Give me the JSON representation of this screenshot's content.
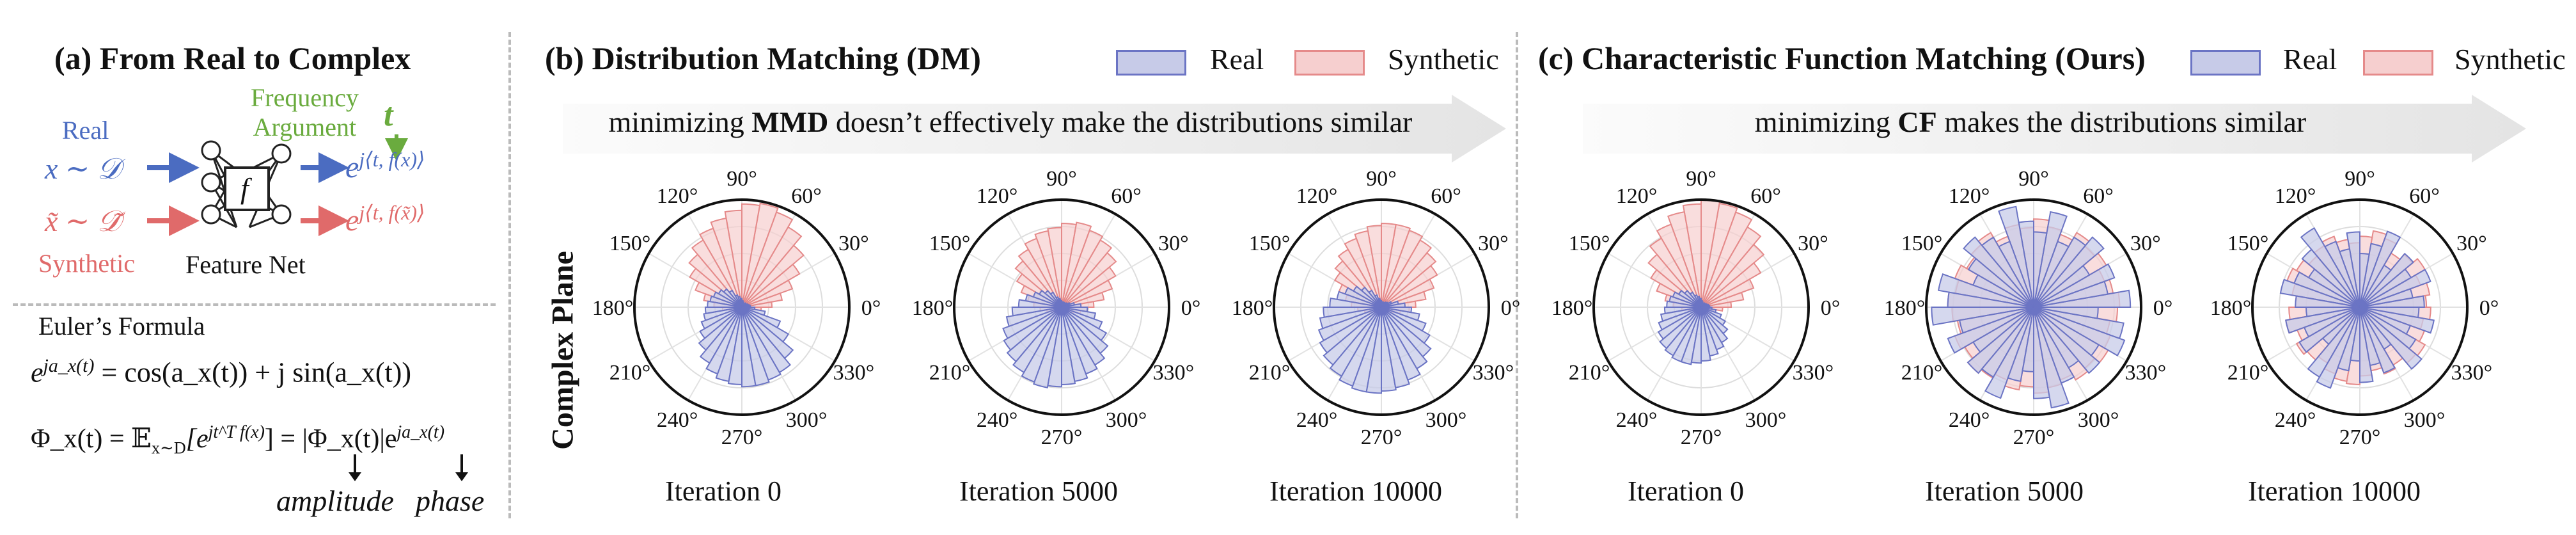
{
  "panel_a": {
    "title": "(a) From Real to Complex",
    "real_label": "Real",
    "synthetic_label": "Synthetic",
    "real_var": "x ∼ 𝒟",
    "synthetic_var": "x̃ ∼ 𝒟̃",
    "freq_label_line1": "Frequency",
    "freq_label_line2": "Argument",
    "t_symbol": "t",
    "net_symbol": "f",
    "net_label": "Feature Net",
    "real_output": "e",
    "real_output_exp": "j⟨t, f(x)⟩",
    "synthetic_output": "e",
    "synthetic_output_exp": "j⟨t, f(x̃)⟩",
    "euler_title": "Euler’s Formula",
    "euler_lhs": "e",
    "euler_lhs_exp": "ja_x(t)",
    "euler_rhs": " = cos(a_x(t)) + j sin(a_x(t))",
    "cf_lhs": "Φ_x(t) = 𝔼",
    "cf_sub": "x∼D",
    "cf_mid": "[e",
    "cf_mid_exp": "jt^T f(x)",
    "cf_rhs": "] = |Φ_x(t)|e",
    "cf_rhs_exp": "ja_x(t)",
    "amplitude": "amplitude",
    "phase": "phase"
  },
  "panel_b": {
    "title": "(b) Distribution Matching (DM)",
    "banner_pre": "minimizing ",
    "banner_bold": "MMD",
    "banner_post": " doesn’t effectively make the distributions similar",
    "side_label": "Complex Plane",
    "captions": [
      "Iteration 0",
      "Iteration 5000",
      "Iteration 10000"
    ]
  },
  "panel_c": {
    "title": "(c) Characteristic Function Matching (Ours)",
    "banner_pre": "minimizing ",
    "banner_bold": "CF",
    "banner_post": " makes the distributions similar",
    "captions": [
      "Iteration 0",
      "Iteration 5000",
      "Iteration 10000"
    ]
  },
  "legend": {
    "real": "Real",
    "synthetic": "Synthetic"
  },
  "angle_labels": [
    "0°",
    "30°",
    "60°",
    "90°",
    "120°",
    "150°",
    "180°",
    "210°",
    "240°",
    "270°",
    "300°",
    "330°"
  ],
  "colors": {
    "real_fill": "#c7cbe8",
    "real_stroke": "#6b74c4",
    "synthetic_fill": "#f6cfcf",
    "synthetic_stroke": "#e58a8a",
    "real_text": "#4b6cc1",
    "synthetic_text": "#e06a6a",
    "freq_text": "#6aab3e"
  },
  "chart_data": [
    {
      "type": "polar-bar",
      "name": "DM Iteration 0",
      "real": [
        0.08,
        0.07,
        0.06,
        0.05,
        0.05,
        0.04,
        0.04,
        0.05,
        0.06,
        0.08,
        0.1,
        0.12,
        0.18,
        0.22,
        0.25,
        0.28,
        0.3,
        0.32,
        0.34,
        0.36,
        0.4,
        0.45,
        0.52,
        0.6,
        0.66,
        0.7,
        0.72,
        0.74,
        0.74,
        0.72,
        0.7,
        0.62,
        0.5,
        0.38,
        0.22,
        0.12
      ],
      "synthetic": [
        0.28,
        0.38,
        0.5,
        0.62,
        0.75,
        0.86,
        0.94,
        0.98,
        0.96,
        0.9,
        0.84,
        0.78,
        0.72,
        0.64,
        0.56,
        0.46,
        0.36,
        0.26,
        0.18,
        0.12,
        0.08,
        0.06,
        0.05,
        0.04,
        0.04,
        0.04,
        0.04,
        0.04,
        0.04,
        0.04,
        0.04,
        0.04,
        0.05,
        0.06,
        0.1,
        0.18
      ]
    },
    {
      "type": "polar-bar",
      "name": "DM Iteration 5000",
      "real": [
        0.18,
        0.12,
        0.08,
        0.06,
        0.05,
        0.05,
        0.05,
        0.05,
        0.05,
        0.06,
        0.08,
        0.1,
        0.16,
        0.2,
        0.24,
        0.28,
        0.34,
        0.4,
        0.46,
        0.52,
        0.58,
        0.62,
        0.66,
        0.7,
        0.74,
        0.76,
        0.74,
        0.72,
        0.7,
        0.66,
        0.62,
        0.56,
        0.48,
        0.4,
        0.32,
        0.24
      ],
      "synthetic": [
        0.3,
        0.4,
        0.5,
        0.58,
        0.66,
        0.72,
        0.76,
        0.8,
        0.78,
        0.74,
        0.72,
        0.68,
        0.62,
        0.56,
        0.48,
        0.4,
        0.32,
        0.26,
        0.2,
        0.14,
        0.1,
        0.08,
        0.06,
        0.05,
        0.05,
        0.05,
        0.05,
        0.05,
        0.05,
        0.05,
        0.05,
        0.06,
        0.08,
        0.12,
        0.18,
        0.24
      ]
    },
    {
      "type": "polar-bar",
      "name": "DM Iteration 10000",
      "real": [
        0.22,
        0.16,
        0.1,
        0.07,
        0.06,
        0.05,
        0.05,
        0.05,
        0.05,
        0.06,
        0.08,
        0.12,
        0.18,
        0.24,
        0.3,
        0.36,
        0.42,
        0.48,
        0.54,
        0.58,
        0.62,
        0.66,
        0.7,
        0.74,
        0.78,
        0.8,
        0.8,
        0.78,
        0.76,
        0.72,
        0.66,
        0.6,
        0.52,
        0.44,
        0.36,
        0.28
      ],
      "synthetic": [
        0.32,
        0.42,
        0.52,
        0.6,
        0.66,
        0.72,
        0.76,
        0.78,
        0.78,
        0.76,
        0.72,
        0.68,
        0.62,
        0.56,
        0.5,
        0.42,
        0.34,
        0.28,
        0.22,
        0.16,
        0.12,
        0.08,
        0.06,
        0.05,
        0.05,
        0.05,
        0.05,
        0.05,
        0.05,
        0.05,
        0.05,
        0.06,
        0.08,
        0.12,
        0.18,
        0.26
      ]
    },
    {
      "type": "polar-bar",
      "name": "CF Iteration 0",
      "real": [
        0.08,
        0.07,
        0.06,
        0.05,
        0.05,
        0.04,
        0.04,
        0.05,
        0.06,
        0.08,
        0.1,
        0.12,
        0.16,
        0.2,
        0.24,
        0.28,
        0.3,
        0.32,
        0.34,
        0.38,
        0.42,
        0.46,
        0.5,
        0.52,
        0.54,
        0.54,
        0.52,
        0.5,
        0.46,
        0.42,
        0.38,
        0.32,
        0.26,
        0.2,
        0.14,
        0.1
      ],
      "synthetic": [
        0.28,
        0.4,
        0.52,
        0.64,
        0.76,
        0.86,
        0.94,
        0.98,
        1.0,
        0.96,
        0.9,
        0.82,
        0.74,
        0.64,
        0.54,
        0.44,
        0.34,
        0.26,
        0.18,
        0.12,
        0.08,
        0.06,
        0.05,
        0.04,
        0.04,
        0.04,
        0.04,
        0.04,
        0.04,
        0.04,
        0.04,
        0.05,
        0.06,
        0.08,
        0.12,
        0.2
      ]
    },
    {
      "type": "polar-bar",
      "name": "CF Iteration 5000",
      "real": [
        0.9,
        0.7,
        0.8,
        0.6,
        0.85,
        0.75,
        0.65,
        0.9,
        0.7,
        0.8,
        0.95,
        0.65,
        0.75,
        0.85,
        0.7,
        0.6,
        0.9,
        0.8,
        0.95,
        0.7,
        0.85,
        0.65,
        0.8,
        0.75,
        0.9,
        0.7,
        0.6,
        0.85,
        0.95,
        0.75,
        0.65,
        0.8,
        0.7,
        0.9,
        0.85,
        0.6
      ],
      "synthetic": [
        0.8,
        0.75,
        0.7,
        0.78,
        0.74,
        0.8,
        0.72,
        0.76,
        0.82,
        0.74,
        0.78,
        0.7,
        0.8,
        0.76,
        0.72,
        0.78,
        0.74,
        0.8,
        0.76,
        0.72,
        0.78,
        0.74,
        0.8,
        0.76,
        0.72,
        0.78,
        0.74,
        0.8,
        0.76,
        0.72,
        0.78,
        0.74,
        0.8,
        0.76,
        0.72,
        0.78
      ]
    },
    {
      "type": "polar-bar",
      "name": "CF Iteration 10000",
      "real": [
        0.6,
        0.5,
        0.7,
        0.55,
        0.65,
        0.45,
        0.75,
        0.6,
        0.5,
        0.7,
        0.55,
        0.65,
        0.85,
        0.7,
        0.55,
        0.65,
        0.75,
        0.6,
        0.5,
        0.7,
        0.55,
        0.65,
        0.45,
        0.75,
        0.8,
        0.6,
        0.5,
        0.7,
        0.55,
        0.65,
        0.45,
        0.75,
        0.6,
        0.5,
        0.7,
        0.55
      ],
      "synthetic": [
        0.62,
        0.66,
        0.6,
        0.7,
        0.64,
        0.58,
        0.68,
        0.72,
        0.66,
        0.6,
        0.64,
        0.7,
        0.66,
        0.62,
        0.68,
        0.72,
        0.64,
        0.6,
        0.66,
        0.7,
        0.62,
        0.68,
        0.64,
        0.6,
        0.66,
        0.7,
        0.72,
        0.64,
        0.6,
        0.66,
        0.62,
        0.68,
        0.7,
        0.64,
        0.6,
        0.66
      ]
    }
  ]
}
